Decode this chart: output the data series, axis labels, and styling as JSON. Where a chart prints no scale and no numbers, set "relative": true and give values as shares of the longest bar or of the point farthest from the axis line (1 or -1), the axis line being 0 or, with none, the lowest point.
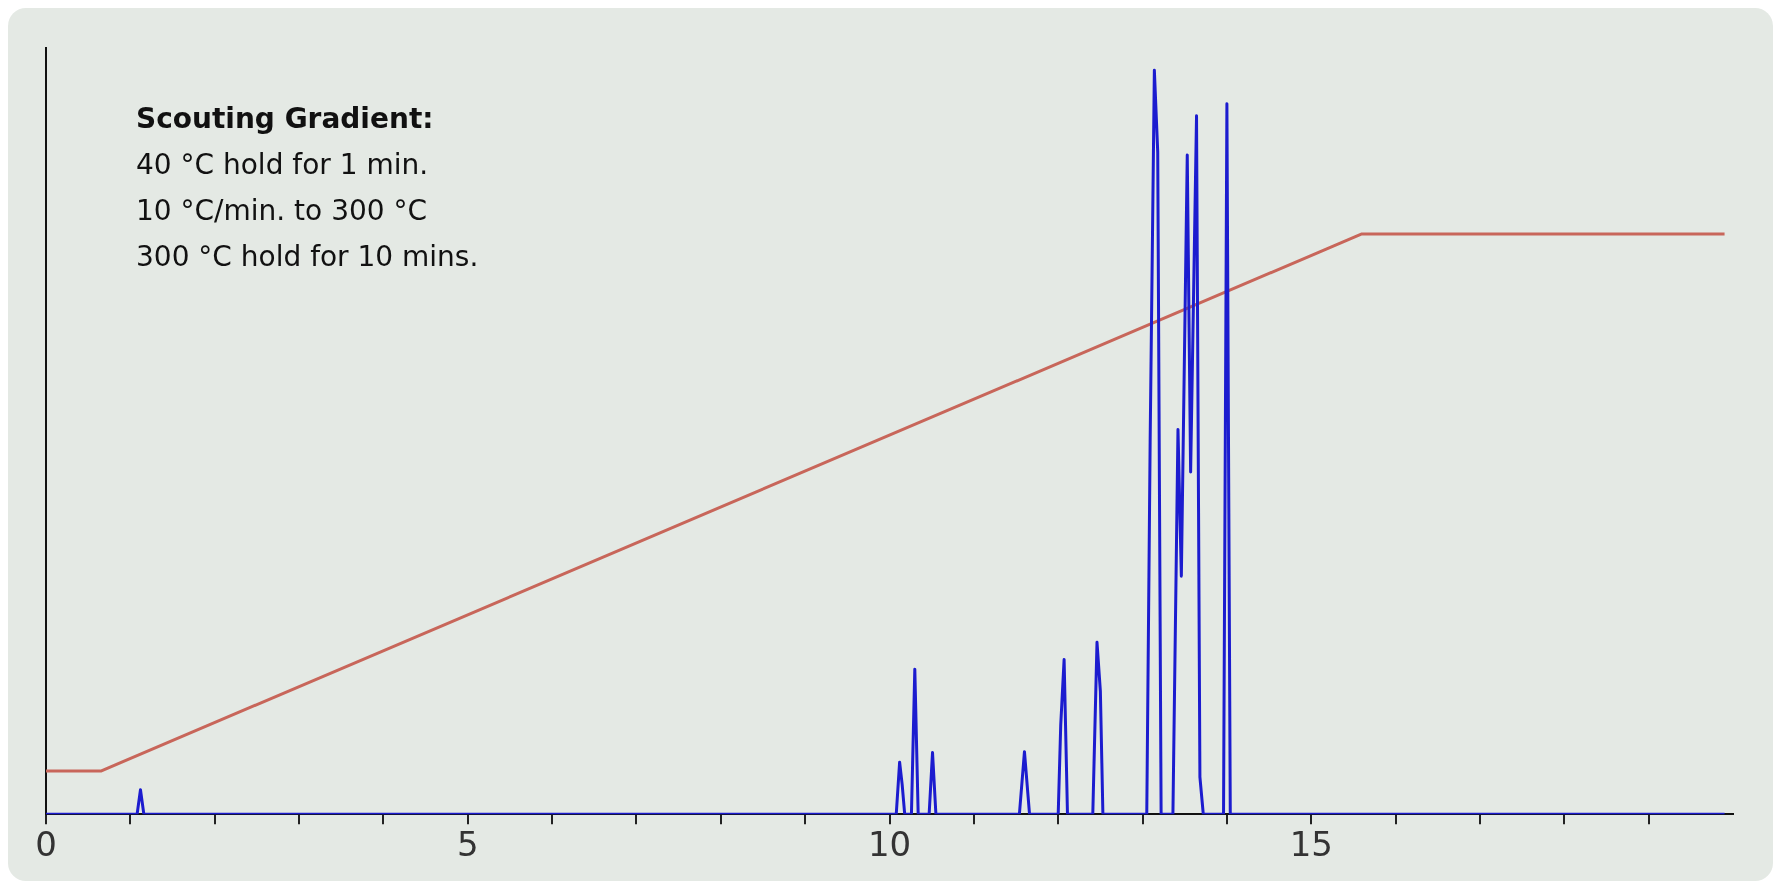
{
  "chart_data": {
    "type": "line",
    "relative": true,
    "annotations": [
      "Scouting Gradient:",
      "40 °C hold for 1 min.",
      "10 °C/min. to 300 °C",
      "300 °C hold for 10 mins."
    ],
    "xlim": [
      0,
      20
    ],
    "xticks": [
      0,
      {
        "value": 1,
        "label": null
      },
      {
        "value": 2,
        "label": null
      },
      {
        "value": 3,
        "label": null
      },
      {
        "value": 4,
        "label": null
      },
      5,
      {
        "value": 6,
        "label": null
      },
      {
        "value": 7,
        "label": null
      },
      {
        "value": 8,
        "label": null
      },
      {
        "value": 9,
        "label": null
      },
      10,
      {
        "value": 11,
        "label": null
      },
      {
        "value": 12,
        "label": null
      },
      {
        "value": 13,
        "label": null
      },
      {
        "value": 14,
        "label": null
      },
      15,
      {
        "value": 16,
        "label": null
      },
      {
        "value": 17,
        "label": null
      },
      {
        "value": 18,
        "label": null
      },
      {
        "value": 19,
        "label": null
      }
    ],
    "grid": false,
    "legend": false,
    "series": [
      {
        "type": "line",
        "color": "#1c1ccf",
        "x": [
          0,
          1.08,
          1.12,
          1.16,
          10.08,
          10.12,
          10.15,
          10.18,
          10.26,
          10.3,
          10.34,
          10.47,
          10.51,
          10.55,
          11.54,
          11.6,
          11.66,
          12.0,
          12.03,
          12.07,
          12.11,
          12.41,
          12.46,
          12.5,
          12.53,
          13.05,
          13.09,
          13.14,
          13.18,
          13.22,
          13.36,
          13.42,
          13.46,
          13.53,
          13.57,
          13.64,
          13.68,
          13.72,
          13.96,
          14.0,
          14.04,
          19.9
        ],
        "values": [
          0,
          0,
          0.033,
          0,
          0,
          0.07,
          0.04,
          0,
          0,
          0.195,
          0,
          0,
          0.083,
          0,
          0,
          0.084,
          0,
          0,
          0.12,
          0.208,
          0,
          0,
          0.231,
          0.165,
          0,
          0,
          0.5,
          1.0,
          0.89,
          0,
          0,
          0.517,
          0.32,
          0.886,
          0.46,
          0.939,
          0.05,
          0,
          0,
          0.955,
          0,
          0
        ]
      },
      {
        "type": "line",
        "color": "#c8665a",
        "x": [
          0,
          0.65,
          15.6,
          19.9
        ],
        "values": [
          0.058,
          0.058,
          0.78,
          0.78
        ]
      }
    ]
  }
}
